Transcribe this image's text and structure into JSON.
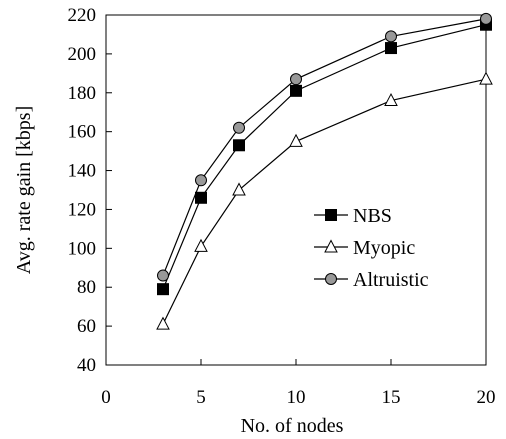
{
  "chart_data": {
    "type": "line",
    "title": "",
    "xlabel": "No. of nodes",
    "ylabel": "Avg. rate gain [kbps]",
    "xlim": [
      0,
      20
    ],
    "ylim": [
      40,
      220
    ],
    "xticks": [
      0,
      5,
      10,
      15,
      20
    ],
    "yticks": [
      40,
      60,
      80,
      100,
      120,
      140,
      160,
      180,
      200,
      220
    ],
    "grid": false,
    "legend_position": "center-right",
    "x": [
      3,
      5,
      7,
      10,
      15,
      20
    ],
    "series": [
      {
        "name": "NBS",
        "marker": "square-filled",
        "color": "#000000",
        "values": [
          79,
          126,
          153,
          181,
          203,
          215
        ]
      },
      {
        "name": "Myopic",
        "marker": "triangle-open",
        "color": "#000000",
        "values": [
          61,
          101,
          130,
          155,
          176,
          187
        ]
      },
      {
        "name": "Altruistic",
        "marker": "circle-gray",
        "color": "#999999",
        "values": [
          86,
          135,
          162,
          187,
          209,
          218
        ]
      }
    ]
  }
}
